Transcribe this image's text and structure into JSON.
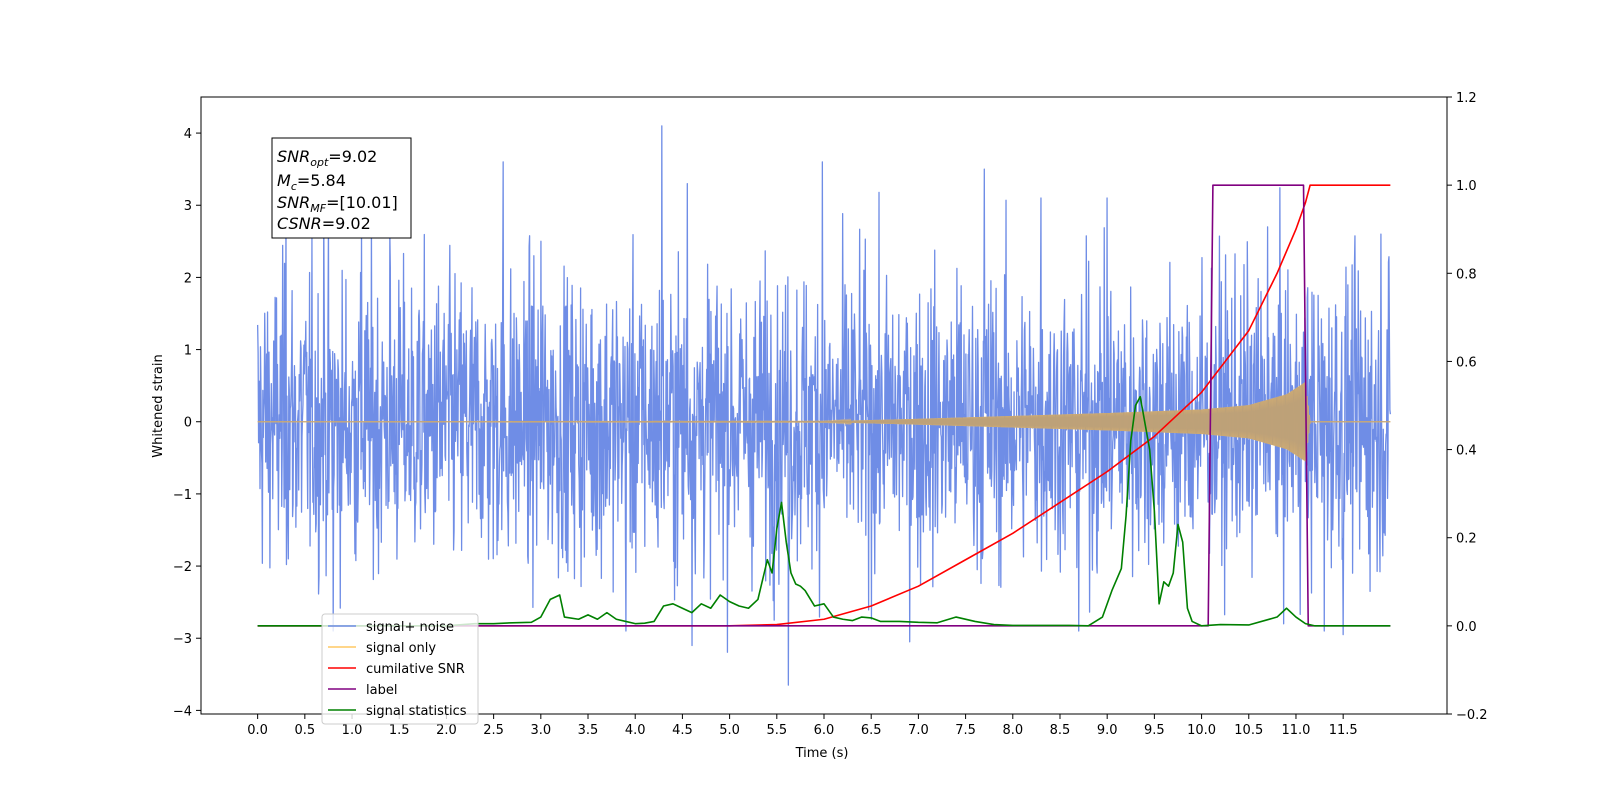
{
  "chart_data": {
    "type": "line",
    "xlabel": "Time (s)",
    "ylabel": "Whitened strain",
    "xlim": [
      -0.6,
      12.6
    ],
    "ylim": [
      -4.05,
      4.5
    ],
    "y2lim": [
      -0.2,
      1.2
    ],
    "x_ticks": [
      "0.0",
      "0.5",
      "1.0",
      "1.5",
      "2.0",
      "2.5",
      "3.0",
      "3.5",
      "4.0",
      "4.5",
      "5.0",
      "5.5",
      "6.0",
      "6.5",
      "7.0",
      "7.5",
      "8.0",
      "8.5",
      "9.0",
      "9.5",
      "10.0",
      "10.5",
      "11.0",
      "11.5"
    ],
    "y_ticks": [
      "4",
      "3",
      "2",
      "1",
      "0",
      "−1",
      "−2",
      "−3",
      "−4"
    ],
    "y2_ticks": [
      "1.2",
      "1.0",
      "0.8",
      "0.6",
      "0.4",
      "0.2",
      "0.0",
      "−0.2"
    ],
    "annotation": {
      "snr_opt": {
        "base": "SNR",
        "sub": "opt",
        "value": "=9.02"
      },
      "mc": {
        "base": "M",
        "sub": "c",
        "value": "=5.84"
      },
      "snr_mf": {
        "base": "SNR",
        "sub": "MF",
        "value": "=[10.01]"
      },
      "csnr": {
        "base": "CSNR",
        "sub": "",
        "value": "=9.02"
      }
    },
    "legend": {
      "placement": "lower-left",
      "entries": [
        {
          "label": "signal+ noise",
          "color": "#6f8de6"
        },
        {
          "label": "signal only",
          "color": "#ffc864"
        },
        {
          "label": "cumilative SNR",
          "color": "#ff0000"
        },
        {
          "label": "label",
          "color": "#800080"
        },
        {
          "label": "signal statistics",
          "color": "#008000"
        }
      ]
    },
    "series": [
      {
        "name": "signal+ noise",
        "axis": "left",
        "style": "noise",
        "x_range": [
          0.0,
          12.0
        ],
        "typical_amplitude": 2.1,
        "spike_peaks": [
          [
            0.3,
            3.0
          ],
          [
            0.7,
            2.9
          ],
          [
            1.1,
            2.7
          ],
          [
            1.4,
            2.6
          ],
          [
            2.6,
            3.6
          ],
          [
            3.0,
            2.5
          ],
          [
            4.28,
            4.1
          ],
          [
            4.55,
            3.3
          ],
          [
            5.98,
            3.6
          ],
          [
            7.7,
            3.5
          ],
          [
            8.3,
            3.1
          ],
          [
            9.0,
            3.1
          ],
          [
            10.7,
            2.7
          ],
          [
            11.5,
            2.9
          ],
          [
            11.9,
            2.6
          ]
        ],
        "spike_troughs": [
          [
            0.8,
            -2.9
          ],
          [
            3.9,
            -2.9
          ],
          [
            4.6,
            -3.1
          ],
          [
            5.62,
            -3.65
          ],
          [
            8.7,
            -2.9
          ],
          [
            11.5,
            -2.95
          ],
          [
            11.3,
            -2.9
          ]
        ],
        "color": "#6f8de6"
      },
      {
        "name": "signal only",
        "axis": "left",
        "style": "chirp",
        "x_range": [
          0.0,
          12.0
        ],
        "envelope": [
          [
            0.0,
            0.0
          ],
          [
            6.0,
            0.005
          ],
          [
            7.0,
            0.04
          ],
          [
            8.0,
            0.08
          ],
          [
            9.0,
            0.12
          ],
          [
            10.0,
            0.17
          ],
          [
            10.5,
            0.23
          ],
          [
            10.9,
            0.38
          ],
          [
            11.1,
            0.55
          ],
          [
            11.15,
            0.0
          ],
          [
            12.0,
            0.0
          ]
        ],
        "color": "#ffc864"
      },
      {
        "name": "cumilative SNR",
        "axis": "right",
        "x": [
          0.0,
          5.0,
          5.5,
          6.0,
          6.5,
          7.0,
          7.5,
          8.0,
          8.5,
          9.0,
          9.5,
          10.0,
          10.5,
          10.8,
          11.0,
          11.1,
          11.15,
          12.0
        ],
        "y": [
          0.0,
          0.0,
          0.003,
          0.015,
          0.045,
          0.09,
          0.15,
          0.21,
          0.28,
          0.35,
          0.43,
          0.53,
          0.67,
          0.8,
          0.9,
          0.96,
          1.0,
          1.0
        ],
        "color": "#ff0000"
      },
      {
        "name": "label",
        "axis": "right",
        "x": [
          0.0,
          10.07,
          10.12,
          11.08,
          11.13,
          12.0
        ],
        "y": [
          0.0,
          0.0,
          1.0,
          1.0,
          0.0,
          0.0
        ],
        "color": "#800080"
      },
      {
        "name": "signal statistics",
        "axis": "right",
        "x": [
          0.0,
          2.0,
          2.3,
          2.5,
          2.7,
          2.9,
          3.0,
          3.1,
          3.2,
          3.25,
          3.4,
          3.5,
          3.6,
          3.7,
          3.8,
          3.9,
          4.0,
          4.1,
          4.2,
          4.3,
          4.4,
          4.5,
          4.6,
          4.7,
          4.8,
          4.9,
          5.0,
          5.1,
          5.2,
          5.3,
          5.4,
          5.45,
          5.5,
          5.55,
          5.6,
          5.65,
          5.7,
          5.75,
          5.8,
          5.9,
          6.0,
          6.1,
          6.2,
          6.3,
          6.4,
          6.5,
          6.6,
          6.8,
          7.0,
          7.2,
          7.4,
          7.6,
          7.8,
          8.0,
          8.3,
          8.6,
          8.8,
          8.95,
          9.05,
          9.15,
          9.2,
          9.25,
          9.3,
          9.35,
          9.4,
          9.45,
          9.5,
          9.55,
          9.6,
          9.65,
          9.7,
          9.75,
          9.8,
          9.85,
          9.9,
          10.0,
          10.2,
          10.5,
          10.8,
          10.9,
          11.0,
          11.1,
          11.2,
          11.6,
          12.0
        ],
        "y": [
          0.0,
          0.0,
          0.005,
          0.005,
          0.007,
          0.008,
          0.02,
          0.06,
          0.07,
          0.02,
          0.015,
          0.025,
          0.015,
          0.03,
          0.015,
          0.01,
          0.005,
          0.006,
          0.01,
          0.045,
          0.05,
          0.04,
          0.03,
          0.05,
          0.04,
          0.07,
          0.055,
          0.045,
          0.04,
          0.06,
          0.15,
          0.12,
          0.22,
          0.28,
          0.19,
          0.12,
          0.095,
          0.09,
          0.08,
          0.045,
          0.05,
          0.02,
          0.015,
          0.012,
          0.02,
          0.018,
          0.01,
          0.01,
          0.008,
          0.007,
          0.02,
          0.01,
          0.003,
          0.001,
          0.001,
          0.001,
          0.0,
          0.02,
          0.08,
          0.13,
          0.25,
          0.42,
          0.5,
          0.52,
          0.46,
          0.4,
          0.26,
          0.05,
          0.1,
          0.09,
          0.12,
          0.23,
          0.19,
          0.04,
          0.01,
          0.0,
          0.003,
          0.002,
          0.02,
          0.04,
          0.02,
          0.005,
          0.0,
          0.0,
          0.0
        ],
        "color": "#008000"
      }
    ]
  }
}
